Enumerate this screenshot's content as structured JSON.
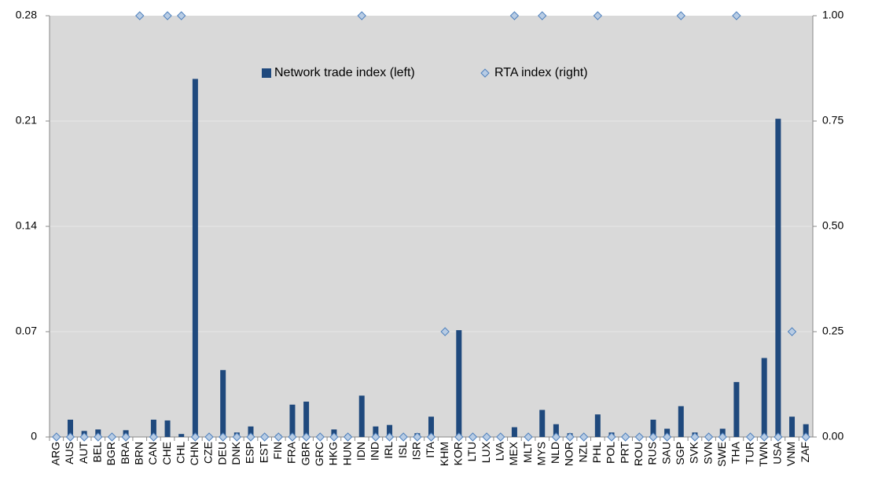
{
  "chart_data": {
    "type": "bar",
    "categories": [
      "ARG",
      "AUS",
      "AUT",
      "BEL",
      "BGR",
      "BRA",
      "BRN",
      "CAN",
      "CHE",
      "CHL",
      "CHN",
      "CZE",
      "DEU",
      "DNK",
      "ESP",
      "EST",
      "FIN",
      "FRA",
      "GBR",
      "GRC",
      "HKG",
      "HUN",
      "IDN",
      "IND",
      "IRL",
      "ISL",
      "ISR",
      "ITA",
      "KHM",
      "KOR",
      "LTU",
      "LUX",
      "LVA",
      "MEX",
      "MLT",
      "MYS",
      "NLD",
      "NOR",
      "NZL",
      "PHL",
      "POL",
      "PRT",
      "ROU",
      "RUS",
      "SAU",
      "SGP",
      "SVK",
      "SVN",
      "SWE",
      "THA",
      "TUR",
      "TWN",
      "USA",
      "VNM",
      "ZAF"
    ],
    "series": [
      {
        "name": "Network trade index  (left)",
        "color": "#1f497d",
        "axis": "y",
        "values": [
          0,
          0.0115,
          0.004,
          0.005,
          0,
          0.0045,
          0,
          0.0115,
          0.011,
          0.002,
          0.238,
          0.001,
          0.0445,
          0.003,
          0.007,
          0,
          0.0015,
          0.0215,
          0.0235,
          0,
          0.005,
          0.0015,
          0.0275,
          0.007,
          0.008,
          0,
          0.0025,
          0.0135,
          0,
          0.071,
          0,
          0,
          0,
          0.0065,
          0,
          0.018,
          0.0085,
          0.0025,
          0,
          0.015,
          0.003,
          0,
          0,
          0.0115,
          0.0055,
          0.0205,
          0.003,
          0,
          0.0055,
          0.0365,
          0,
          0.0525,
          0.2115,
          0.0135,
          0.0085
        ]
      },
      {
        "name": "RTA index  (right)",
        "color": "#b8cce4",
        "axis": "y2",
        "values": [
          0,
          0,
          0,
          0,
          0,
          0,
          1,
          0,
          1,
          1,
          0,
          0,
          0,
          0,
          0,
          0,
          0,
          0,
          0,
          0,
          0,
          0,
          1,
          0,
          0,
          0,
          0,
          0,
          0.25,
          0,
          0,
          0,
          0,
          1,
          0,
          1,
          0,
          0,
          0,
          1,
          0,
          0,
          0,
          0,
          0,
          1,
          0,
          0,
          0,
          1,
          0,
          0,
          0,
          0.25,
          0
        ]
      }
    ],
    "ylim": [
      0,
      0.28
    ],
    "yticks": [
      0,
      0.07,
      0.14,
      0.21,
      0.28
    ],
    "y2lim": [
      0,
      1
    ],
    "y2ticks": [
      {
        "value": 0,
        "label": "0.00"
      },
      0.25,
      {
        "value": 0.5,
        "label": "0.50"
      },
      0.75,
      {
        "value": 1,
        "label": "1.00"
      }
    ],
    "grid": true,
    "legend": "top"
  }
}
